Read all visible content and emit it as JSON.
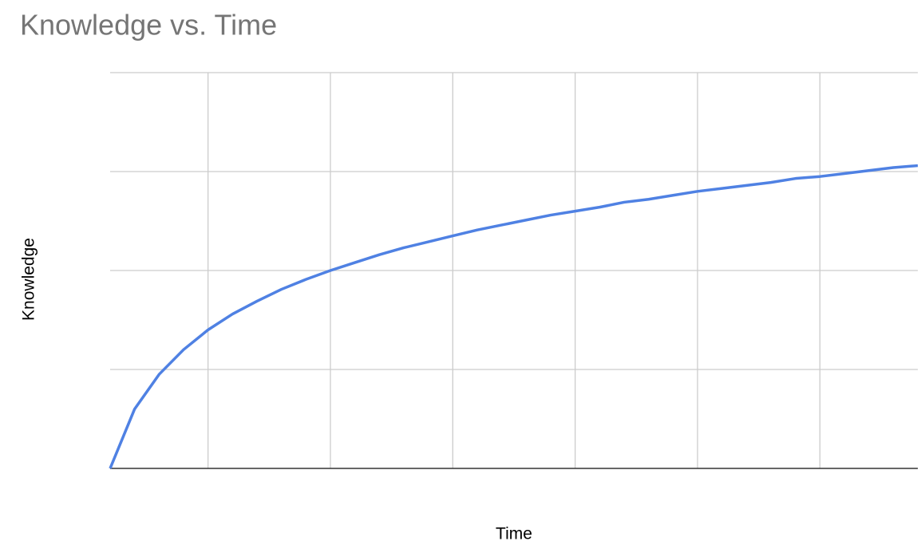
{
  "chart_data": {
    "type": "line",
    "title": "Knowledge vs. Time",
    "x_label": "Time",
    "y_label": "Knowledge",
    "x": [
      0,
      1,
      2,
      3,
      4,
      5,
      6,
      7,
      8,
      9,
      10,
      11,
      12,
      13,
      14,
      15,
      16,
      17,
      18,
      19,
      20,
      21,
      22,
      23,
      24,
      25,
      26,
      27,
      28,
      29,
      30,
      31,
      32,
      33
    ],
    "series": [
      {
        "name": "Knowledge",
        "color": "#4f81e3",
        "values": [
          0,
          0.6,
          0.95,
          1.2,
          1.4,
          1.56,
          1.69,
          1.81,
          1.91,
          2,
          2.08,
          2.16,
          2.23,
          2.29,
          2.35,
          2.41,
          2.46,
          2.51,
          2.56,
          2.6,
          2.64,
          2.69,
          2.72,
          2.76,
          2.8,
          2.83,
          2.86,
          2.89,
          2.93,
          2.95,
          2.98,
          3.01,
          3.04,
          3.06
        ]
      }
    ],
    "xlim": [
      0,
      33
    ],
    "ylim": [
      0,
      4
    ],
    "xticks": [
      4,
      9,
      14,
      19,
      24,
      29
    ],
    "yticks": [
      0,
      1,
      2,
      3,
      4
    ],
    "grid": true
  }
}
